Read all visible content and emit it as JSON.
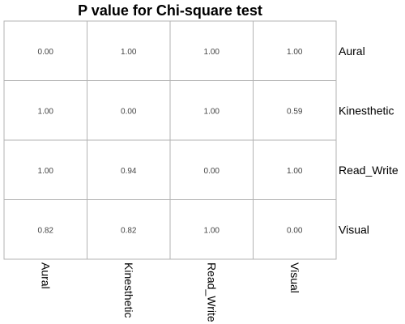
{
  "chart_data": {
    "type": "heatmap",
    "title": "P value for Chi-square test",
    "x": [
      "Aural",
      "Kinesthetic",
      "Read_Write",
      "Visual"
    ],
    "y": [
      "Aural",
      "Kinesthetic",
      "Read_Write",
      "Visual"
    ],
    "values": [
      [
        0.0,
        1.0,
        1.0,
        1.0
      ],
      [
        1.0,
        0.0,
        1.0,
        0.59
      ],
      [
        1.0,
        0.94,
        0.0,
        1.0
      ],
      [
        0.82,
        0.82,
        1.0,
        0.0
      ]
    ],
    "value_labels": [
      [
        "0.00",
        "1.00",
        "1.00",
        "1.00"
      ],
      [
        "1.00",
        "0.00",
        "1.00",
        "0.59"
      ],
      [
        "1.00",
        "0.94",
        "0.00",
        "1.00"
      ],
      [
        "0.82",
        "0.82",
        "1.00",
        "0.00"
      ]
    ],
    "cell_fill": "#ffffff",
    "grid_color": "#b3b3b3",
    "text_color": "#444444",
    "label_color": "#000000",
    "y_axis_position": "right",
    "x_label_rotation": "vertical"
  }
}
